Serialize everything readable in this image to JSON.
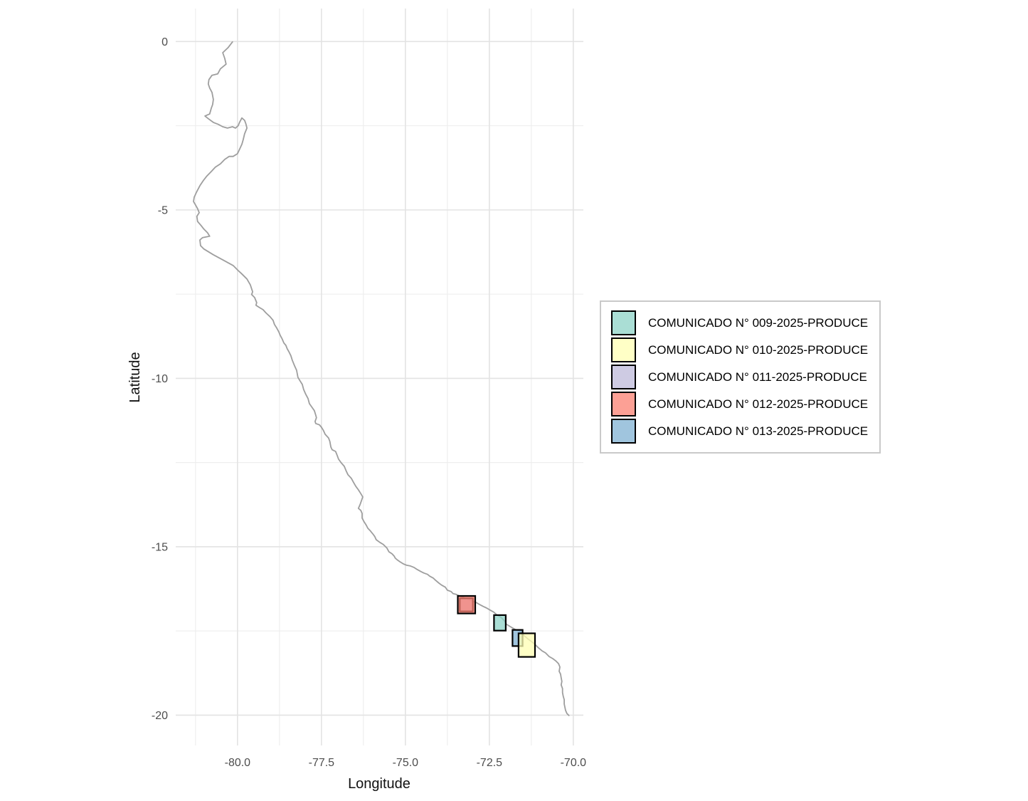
{
  "style": {
    "background": "#ffffff",
    "grid_major_color": "#e3e3e3",
    "grid_minor_color": "#ededed",
    "coast_color": "#9e9e9e",
    "zone_border_color": "#000000",
    "zone_alpha": 0.75,
    "axis_text_color": "#4d4d4d",
    "axis_title_color": "#111111",
    "legend_border_color": "#c9c9c9"
  },
  "chart_data": {
    "type": "map",
    "title": "",
    "xlabel": "Longitude",
    "ylabel": "Latitude",
    "xlim": [
      -81.84,
      -69.7
    ],
    "ylim": [
      -20.9,
      0.98
    ],
    "grid": true,
    "legend_position": "right",
    "x_ticks": [
      {
        "value": -80.0,
        "label": "-80.0"
      },
      {
        "value": -77.5,
        "label": "-77.5"
      },
      {
        "value": -75.0,
        "label": "-75.0"
      },
      {
        "value": -72.5,
        "label": "-72.5"
      },
      {
        "value": -70.0,
        "label": "-70.0"
      }
    ],
    "y_ticks": [
      {
        "value": 0,
        "label": "0"
      },
      {
        "value": -5,
        "label": "-5"
      },
      {
        "value": -10,
        "label": "-10"
      },
      {
        "value": -15,
        "label": "-15"
      },
      {
        "value": -20,
        "label": "-20"
      }
    ],
    "x_minor": [
      -81.25,
      -78.75,
      -76.25,
      -73.75,
      -71.25
    ],
    "y_minor": [
      -2.5,
      -7.5,
      -12.5,
      -17.5
    ],
    "zones": [
      {
        "id": "009",
        "label": "COMUNICADO N° 009-2025-PRODUCE",
        "color": "#8DD3C7",
        "lon_min": -72.36,
        "lon_max": -72.01,
        "lat_min": -17.49,
        "lat_max": -17.03
      },
      {
        "id": "010",
        "label": "COMUNICADO N° 010-2025-PRODUCE",
        "color": "#FFFFB3",
        "lon_min": -71.63,
        "lon_max": -71.14,
        "lat_min": -18.27,
        "lat_max": -17.57
      },
      {
        "id": "011",
        "label": "COMUNICADO N° 011-2025-PRODUCE",
        "color": "#BEBADA",
        "lon_min": -73.38,
        "lon_max": -72.99,
        "lat_min": -16.92,
        "lat_max": -16.53
      },
      {
        "id": "012",
        "label": "COMUNICADO N° 012-2025-PRODUCE",
        "color": "#FB8072",
        "lon_min": -73.44,
        "lon_max": -72.92,
        "lat_min": -16.98,
        "lat_max": -16.46
      },
      {
        "id": "013",
        "label": "COMUNICADO N° 013-2025-PRODUCE",
        "color": "#80B1D3",
        "lon_min": -71.81,
        "lon_max": -71.51,
        "lat_min": -17.95,
        "lat_max": -17.47
      }
    ],
    "draw_order": [
      "011",
      "012",
      "009",
      "013",
      "010"
    ],
    "coastline": [
      [
        -80.15,
        -0.01
      ],
      [
        -80.28,
        -0.18
      ],
      [
        -80.44,
        -0.33
      ],
      [
        -80.38,
        -0.5
      ],
      [
        -80.34,
        -0.67
      ],
      [
        -80.51,
        -0.81
      ],
      [
        -80.59,
        -0.96
      ],
      [
        -80.76,
        -1.0
      ],
      [
        -80.85,
        -1.13
      ],
      [
        -80.87,
        -1.26
      ],
      [
        -80.83,
        -1.38
      ],
      [
        -80.76,
        -1.51
      ],
      [
        -80.72,
        -1.72
      ],
      [
        -80.74,
        -1.87
      ],
      [
        -80.78,
        -1.98
      ],
      [
        -80.83,
        -2.15
      ],
      [
        -80.97,
        -2.21
      ],
      [
        -80.87,
        -2.29
      ],
      [
        -80.72,
        -2.4
      ],
      [
        -80.57,
        -2.46
      ],
      [
        -80.44,
        -2.53
      ],
      [
        -80.3,
        -2.57
      ],
      [
        -80.15,
        -2.53
      ],
      [
        -80.06,
        -2.57
      ],
      [
        -79.98,
        -2.5
      ],
      [
        -79.94,
        -2.4
      ],
      [
        -79.87,
        -2.27
      ],
      [
        -79.79,
        -2.34
      ],
      [
        -79.75,
        -2.44
      ],
      [
        -79.72,
        -2.57
      ],
      [
        -79.79,
        -2.74
      ],
      [
        -79.83,
        -2.91
      ],
      [
        -79.87,
        -3.05
      ],
      [
        -79.94,
        -3.2
      ],
      [
        -80.0,
        -3.33
      ],
      [
        -80.13,
        -3.41
      ],
      [
        -80.25,
        -3.41
      ],
      [
        -80.38,
        -3.5
      ],
      [
        -80.51,
        -3.63
      ],
      [
        -80.66,
        -3.73
      ],
      [
        -80.78,
        -3.86
      ],
      [
        -80.91,
        -3.99
      ],
      [
        -81.02,
        -4.13
      ],
      [
        -81.12,
        -4.28
      ],
      [
        -81.21,
        -4.45
      ],
      [
        -81.29,
        -4.62
      ],
      [
        -81.31,
        -4.75
      ],
      [
        -81.25,
        -4.85
      ],
      [
        -81.19,
        -4.96
      ],
      [
        -81.14,
        -5.08
      ],
      [
        -81.21,
        -5.19
      ],
      [
        -81.19,
        -5.34
      ],
      [
        -81.08,
        -5.47
      ],
      [
        -81.0,
        -5.57
      ],
      [
        -80.89,
        -5.68
      ],
      [
        -80.83,
        -5.78
      ],
      [
        -81.04,
        -5.82
      ],
      [
        -81.12,
        -5.89
      ],
      [
        -81.1,
        -6.06
      ],
      [
        -81.0,
        -6.16
      ],
      [
        -80.72,
        -6.33
      ],
      [
        -80.44,
        -6.48
      ],
      [
        -80.13,
        -6.65
      ],
      [
        -79.98,
        -6.8
      ],
      [
        -79.89,
        -6.88
      ],
      [
        -79.72,
        -7.05
      ],
      [
        -79.62,
        -7.22
      ],
      [
        -79.55,
        -7.43
      ],
      [
        -79.58,
        -7.51
      ],
      [
        -79.49,
        -7.6
      ],
      [
        -79.43,
        -7.75
      ],
      [
        -79.45,
        -7.83
      ],
      [
        -79.34,
        -7.9
      ],
      [
        -79.24,
        -7.96
      ],
      [
        -79.15,
        -8.06
      ],
      [
        -79.03,
        -8.17
      ],
      [
        -78.94,
        -8.28
      ],
      [
        -78.9,
        -8.4
      ],
      [
        -78.83,
        -8.51
      ],
      [
        -78.77,
        -8.62
      ],
      [
        -78.73,
        -8.72
      ],
      [
        -78.67,
        -8.83
      ],
      [
        -78.62,
        -8.95
      ],
      [
        -78.56,
        -9.02
      ],
      [
        -78.52,
        -9.12
      ],
      [
        -78.47,
        -9.21
      ],
      [
        -78.41,
        -9.33
      ],
      [
        -78.37,
        -9.46
      ],
      [
        -78.3,
        -9.63
      ],
      [
        -78.24,
        -9.76
      ],
      [
        -78.2,
        -9.97
      ],
      [
        -78.14,
        -10.07
      ],
      [
        -78.07,
        -10.18
      ],
      [
        -78.03,
        -10.33
      ],
      [
        -77.97,
        -10.47
      ],
      [
        -77.9,
        -10.6
      ],
      [
        -77.86,
        -10.75
      ],
      [
        -77.78,
        -10.86
      ],
      [
        -77.71,
        -10.96
      ],
      [
        -77.67,
        -11.09
      ],
      [
        -77.65,
        -11.17
      ],
      [
        -77.69,
        -11.28
      ],
      [
        -77.67,
        -11.34
      ],
      [
        -77.56,
        -11.38
      ],
      [
        -77.5,
        -11.45
      ],
      [
        -77.44,
        -11.55
      ],
      [
        -77.39,
        -11.66
      ],
      [
        -77.29,
        -11.77
      ],
      [
        -77.25,
        -11.87
      ],
      [
        -77.22,
        -12.04
      ],
      [
        -77.18,
        -12.12
      ],
      [
        -77.08,
        -12.17
      ],
      [
        -77.03,
        -12.29
      ],
      [
        -76.99,
        -12.4
      ],
      [
        -76.91,
        -12.51
      ],
      [
        -76.82,
        -12.61
      ],
      [
        -76.76,
        -12.76
      ],
      [
        -76.71,
        -12.86
      ],
      [
        -76.61,
        -12.97
      ],
      [
        -76.55,
        -13.08
      ],
      [
        -76.48,
        -13.2
      ],
      [
        -76.4,
        -13.31
      ],
      [
        -76.33,
        -13.42
      ],
      [
        -76.27,
        -13.52
      ],
      [
        -76.35,
        -13.75
      ],
      [
        -76.4,
        -13.86
      ],
      [
        -76.33,
        -13.92
      ],
      [
        -76.29,
        -14.01
      ],
      [
        -76.29,
        -14.15
      ],
      [
        -76.23,
        -14.26
      ],
      [
        -76.17,
        -14.35
      ],
      [
        -76.12,
        -14.45
      ],
      [
        -76.06,
        -14.51
      ],
      [
        -75.97,
        -14.62
      ],
      [
        -75.91,
        -14.7
      ],
      [
        -75.87,
        -14.79
      ],
      [
        -75.76,
        -14.87
      ],
      [
        -75.66,
        -14.93
      ],
      [
        -75.55,
        -15.04
      ],
      [
        -75.49,
        -15.15
      ],
      [
        -75.4,
        -15.21
      ],
      [
        -75.34,
        -15.27
      ],
      [
        -75.3,
        -15.34
      ],
      [
        -75.23,
        -15.4
      ],
      [
        -75.17,
        -15.44
      ],
      [
        -75.06,
        -15.51
      ],
      [
        -74.96,
        -15.55
      ],
      [
        -74.85,
        -15.57
      ],
      [
        -74.75,
        -15.61
      ],
      [
        -74.64,
        -15.68
      ],
      [
        -74.53,
        -15.74
      ],
      [
        -74.45,
        -15.78
      ],
      [
        -74.34,
        -15.82
      ],
      [
        -74.28,
        -15.87
      ],
      [
        -74.17,
        -15.93
      ],
      [
        -74.11,
        -15.99
      ],
      [
        -74.0,
        -16.08
      ],
      [
        -73.92,
        -16.14
      ],
      [
        -73.81,
        -16.2
      ],
      [
        -73.75,
        -16.29
      ],
      [
        -73.64,
        -16.33
      ],
      [
        -73.58,
        -16.39
      ],
      [
        -73.5,
        -16.41
      ],
      [
        -73.39,
        -16.46
      ],
      [
        -73.28,
        -16.5
      ],
      [
        -73.18,
        -16.54
      ],
      [
        -73.07,
        -16.58
      ],
      [
        -72.97,
        -16.63
      ],
      [
        -72.9,
        -16.65
      ],
      [
        -72.8,
        -16.71
      ],
      [
        -72.69,
        -16.77
      ],
      [
        -72.58,
        -16.82
      ],
      [
        -72.48,
        -16.88
      ],
      [
        -72.37,
        -16.94
      ],
      [
        -72.27,
        -17.03
      ],
      [
        -72.16,
        -17.09
      ],
      [
        -72.05,
        -17.2
      ],
      [
        -71.99,
        -17.3
      ],
      [
        -71.88,
        -17.37
      ],
      [
        -71.74,
        -17.45
      ],
      [
        -71.59,
        -17.51
      ],
      [
        -71.53,
        -17.58
      ],
      [
        -71.44,
        -17.66
      ],
      [
        -71.36,
        -17.73
      ],
      [
        -71.25,
        -17.81
      ],
      [
        -71.14,
        -17.9
      ],
      [
        -71.04,
        -18.0
      ],
      [
        -70.93,
        -18.09
      ],
      [
        -70.83,
        -18.15
      ],
      [
        -70.72,
        -18.26
      ],
      [
        -70.61,
        -18.32
      ],
      [
        -70.51,
        -18.4
      ],
      [
        -70.44,
        -18.47
      ],
      [
        -70.4,
        -18.57
      ],
      [
        -70.42,
        -18.7
      ],
      [
        -70.38,
        -18.78
      ],
      [
        -70.36,
        -18.89
      ],
      [
        -70.34,
        -19.0
      ],
      [
        -70.36,
        -19.1
      ],
      [
        -70.32,
        -19.21
      ],
      [
        -70.32,
        -19.33
      ],
      [
        -70.3,
        -19.44
      ],
      [
        -70.27,
        -19.54
      ],
      [
        -70.27,
        -19.67
      ],
      [
        -70.25,
        -19.76
      ],
      [
        -70.23,
        -19.86
      ],
      [
        -70.19,
        -19.95
      ],
      [
        -70.13,
        -20.01
      ]
    ]
  }
}
